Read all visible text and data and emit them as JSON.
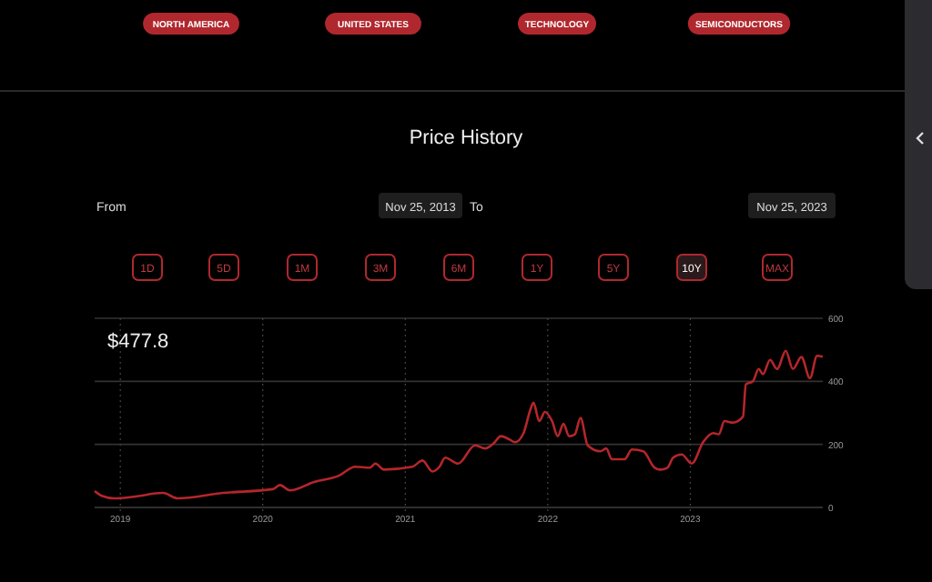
{
  "chart_data": {
    "type": "line",
    "title": "Price History",
    "x": [
      2018.82,
      2018.87,
      2018.96,
      2019.08,
      2019.3,
      2019.4,
      2019.72,
      2020.07,
      2020.12,
      2020.19,
      2020.36,
      2020.53,
      2020.65,
      2020.75,
      2020.79,
      2020.85,
      2021.05,
      2021.12,
      2021.19,
      2021.24,
      2021.28,
      2021.37,
      2021.49,
      2021.56,
      2021.62,
      2021.67,
      2021.73,
      2021.77,
      2021.83,
      2021.88,
      2021.9,
      2021.94,
      2021.98,
      2022.03,
      2022.07,
      2022.11,
      2022.15,
      2022.19,
      2022.23,
      2022.28,
      2022.37,
      2022.41,
      2022.45,
      2022.54,
      2022.59,
      2022.67,
      2022.75,
      2022.79,
      2022.84,
      2022.88,
      2022.94,
      2023.01,
      2023.09,
      2023.16,
      2023.2,
      2023.24,
      2023.3,
      2023.37,
      2023.39,
      2023.44,
      2023.48,
      2023.51,
      2023.56,
      2023.61,
      2023.67,
      2023.72,
      2023.78,
      2023.84,
      2023.89,
      2023.93
    ],
    "series": [
      {
        "color": "#b5262b",
        "values": [
          52,
          37,
          29,
          33,
          46,
          29,
          46,
          58,
          71,
          54,
          81,
          100,
          129,
          126,
          139,
          120,
          129,
          149,
          114,
          129,
          158,
          139,
          197,
          187,
          203,
          226,
          216,
          207,
          236,
          313,
          332,
          274,
          303,
          274,
          226,
          265,
          226,
          232,
          284,
          197,
          178,
          187,
          153,
          153,
          184,
          178,
          126,
          120,
          126,
          158,
          168,
          139,
          207,
          236,
          232,
          274,
          269,
          288,
          390,
          400,
          439,
          423,
          468,
          439,
          497,
          439,
          477,
          410,
          481,
          477.8
        ]
      }
    ],
    "xlim": [
      2018.82,
      2023.93
    ],
    "xticks": [
      2019,
      2020,
      2021,
      2022,
      2023
    ],
    "ylim": [
      0,
      600
    ],
    "yticks": [
      0,
      200,
      400,
      600
    ],
    "grid": true,
    "marker": "none",
    "line_style": "solid",
    "annotations": [
      "NORTH AMERICA",
      "UNITED STATES",
      "TECHNOLOGY",
      "SEMICONDUCTORS",
      "From",
      "Nov 25, 2013",
      "To",
      "Nov 25, 2023",
      "1D",
      "5D",
      "1M",
      "3M",
      "6M",
      "1Y",
      "5Y",
      "10Y",
      "MAX",
      "$477.8"
    ]
  }
}
